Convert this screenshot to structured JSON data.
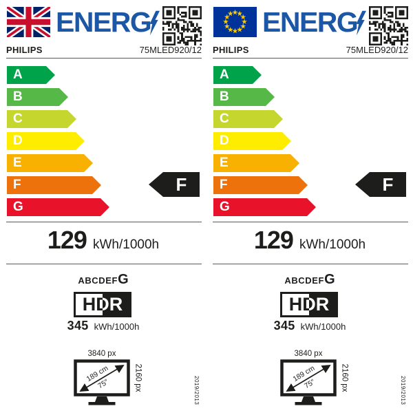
{
  "colors": {
    "brand_blue": "#1c57a5",
    "ink": "#1d1d1b",
    "rated_arrow_black": "#1d1d1b",
    "eu_flag_blue": "#003399",
    "eu_star_yellow": "#ffcc00",
    "uk_flag_blue": "#012169",
    "uk_flag_red": "#c8102e",
    "divider_gray": "#58595b"
  },
  "labels": [
    {
      "flag_icon": "uk-flag",
      "logo_text": "ENERG",
      "supplier": "PHILIPS",
      "model": "75MLED920/12",
      "scale": [
        {
          "grade": "A",
          "color": "#00a24a"
        },
        {
          "grade": "B",
          "color": "#56b947"
        },
        {
          "grade": "C",
          "color": "#c5d72f"
        },
        {
          "grade": "D",
          "color": "#ffed00"
        },
        {
          "grade": "E",
          "color": "#f8b100"
        },
        {
          "grade": "F",
          "color": "#ee720b"
        },
        {
          "grade": "G",
          "color": "#e8132b"
        }
      ],
      "rated_class": "F",
      "sdr": {
        "value": "129",
        "unit": "kWh/1000h"
      },
      "hdr": {
        "scale_prefix": "ABCDEF",
        "scale_max": "G",
        "logo": "HDR",
        "value": "345",
        "unit": "kWh/1000h"
      },
      "screen": {
        "h_res": "3840 px",
        "v_res": "2160 px",
        "diag_cm": "189 cm",
        "diag_inch": "75″"
      },
      "regulation": "2019/2013"
    },
    {
      "flag_icon": "eu-flag",
      "logo_text": "ENERG",
      "supplier": "PHILIPS",
      "model": "75MLED920/12",
      "scale": [
        {
          "grade": "A",
          "color": "#00a24a"
        },
        {
          "grade": "B",
          "color": "#56b947"
        },
        {
          "grade": "C",
          "color": "#c5d72f"
        },
        {
          "grade": "D",
          "color": "#ffed00"
        },
        {
          "grade": "E",
          "color": "#f8b100"
        },
        {
          "grade": "F",
          "color": "#ee720b"
        },
        {
          "grade": "G",
          "color": "#e8132b"
        }
      ],
      "rated_class": "F",
      "sdr": {
        "value": "129",
        "unit": "kWh/1000h"
      },
      "hdr": {
        "scale_prefix": "ABCDEF",
        "scale_max": "G",
        "logo": "HDR",
        "value": "345",
        "unit": "kWh/1000h"
      },
      "screen": {
        "h_res": "3840 px",
        "v_res": "2160 px",
        "diag_cm": "189 cm",
        "diag_inch": "75″"
      },
      "regulation": "2019/2013"
    }
  ]
}
